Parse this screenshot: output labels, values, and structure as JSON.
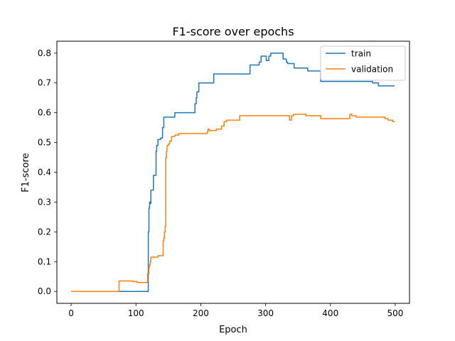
{
  "chart_data": {
    "type": "line",
    "title": "F1-score over epochs",
    "xlabel": "Epoch",
    "ylabel": "F1-score",
    "xlim": [
      -22,
      522
    ],
    "ylim": [
      -0.04,
      0.84
    ],
    "xticks": [
      0,
      100,
      200,
      300,
      400,
      500
    ],
    "yticks": [
      0.0,
      0.1,
      0.2,
      0.3,
      0.4,
      0.5,
      0.6,
      0.7,
      0.8
    ],
    "xtick_labels": [
      "0",
      "100",
      "200",
      "300",
      "400",
      "500"
    ],
    "ytick_labels": [
      "0.0",
      "0.1",
      "0.2",
      "0.3",
      "0.4",
      "0.5",
      "0.6",
      "0.7",
      "0.8"
    ],
    "grid": false,
    "legend_position": "top-right",
    "series": [
      {
        "name": "train",
        "color": "#1f77b4",
        "step": true,
        "points": [
          [
            0,
            0.0
          ],
          [
            118,
            0.0
          ],
          [
            119,
            0.2
          ],
          [
            120,
            0.28
          ],
          [
            121,
            0.3
          ],
          [
            122,
            0.295
          ],
          [
            123,
            0.34
          ],
          [
            127,
            0.39
          ],
          [
            131,
            0.47
          ],
          [
            132,
            0.49
          ],
          [
            134,
            0.51
          ],
          [
            138,
            0.515
          ],
          [
            141,
            0.55
          ],
          [
            143,
            0.585
          ],
          [
            160,
            0.6
          ],
          [
            191,
            0.63
          ],
          [
            193,
            0.65
          ],
          [
            194,
            0.67
          ],
          [
            197,
            0.7
          ],
          [
            220,
            0.73
          ],
          [
            276,
            0.76
          ],
          [
            290,
            0.77
          ],
          [
            293,
            0.79
          ],
          [
            301,
            0.775
          ],
          [
            305,
            0.79
          ],
          [
            308,
            0.8
          ],
          [
            327,
            0.78
          ],
          [
            332,
            0.77
          ],
          [
            334,
            0.765
          ],
          [
            344,
            0.75
          ],
          [
            365,
            0.74
          ],
          [
            385,
            0.705
          ],
          [
            465,
            0.7
          ],
          [
            474,
            0.69
          ],
          [
            499,
            0.69
          ]
        ]
      },
      {
        "name": "validation",
        "color": "#ff7f0e",
        "step": true,
        "points": [
          [
            0,
            0.0
          ],
          [
            73,
            0.0
          ],
          [
            74,
            0.035
          ],
          [
            95,
            0.033
          ],
          [
            102,
            0.03
          ],
          [
            117,
            0.03
          ],
          [
            118,
            0.06
          ],
          [
            120,
            0.08
          ],
          [
            121,
            0.09
          ],
          [
            122,
            0.1
          ],
          [
            123,
            0.115
          ],
          [
            134,
            0.12
          ],
          [
            142,
            0.17
          ],
          [
            143,
            0.18
          ],
          [
            144,
            0.2
          ],
          [
            145,
            0.22
          ],
          [
            146,
            0.45
          ],
          [
            147,
            0.47
          ],
          [
            148,
            0.49
          ],
          [
            150,
            0.495
          ],
          [
            152,
            0.505
          ],
          [
            155,
            0.52
          ],
          [
            160,
            0.525
          ],
          [
            166,
            0.53
          ],
          [
            210,
            0.535
          ],
          [
            211,
            0.545
          ],
          [
            213,
            0.54
          ],
          [
            224,
            0.545
          ],
          [
            232,
            0.555
          ],
          [
            236,
            0.57
          ],
          [
            240,
            0.575
          ],
          [
            260,
            0.59
          ],
          [
            337,
            0.575
          ],
          [
            340,
            0.59
          ],
          [
            343,
            0.595
          ],
          [
            362,
            0.59
          ],
          [
            385,
            0.58
          ],
          [
            427,
            0.58
          ],
          [
            430,
            0.595
          ],
          [
            433,
            0.59
          ],
          [
            440,
            0.585
          ],
          [
            484,
            0.58
          ],
          [
            489,
            0.575
          ],
          [
            496,
            0.57
          ],
          [
            499,
            0.57
          ]
        ]
      }
    ]
  }
}
